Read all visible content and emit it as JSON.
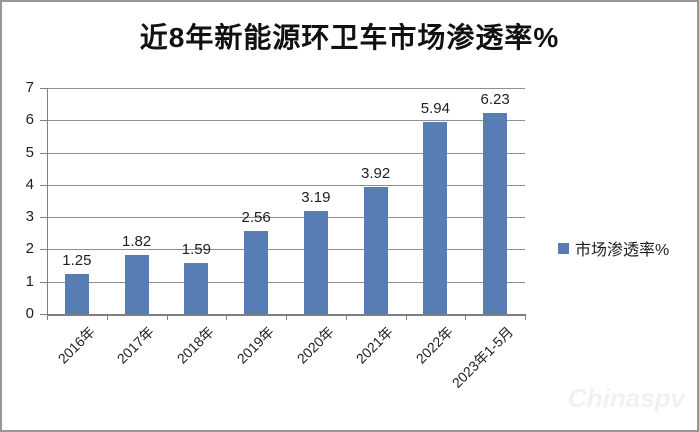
{
  "title": "近8年新能源环卫车市场渗透率%",
  "legend": {
    "label": "市场渗透率%"
  },
  "watermark": "Chinaspv",
  "colors": {
    "bar": "#587DB4",
    "gridline": "#8f8f8f",
    "axis": "#7f7f7f",
    "text": "#1f1f1f",
    "frame_border": "#979797"
  },
  "chart_data": {
    "type": "bar",
    "title": "近8年新能源环卫车市场渗透率%",
    "categories": [
      "2016年",
      "2017年",
      "2018年",
      "2019年",
      "2020年",
      "2021年",
      "2022年",
      "2023年1-5月"
    ],
    "series": [
      {
        "name": "市场渗透率%",
        "values": [
          1.25,
          1.82,
          1.59,
          2.56,
          3.19,
          3.92,
          5.94,
          6.23
        ]
      }
    ],
    "value_labels": [
      "1.25",
      "1.82",
      "1.59",
      "2.56",
      "3.19",
      "3.92",
      "5.94",
      "6.23"
    ],
    "xlabel": "",
    "ylabel": "",
    "ylim": [
      0,
      7
    ],
    "ytick_step": 1,
    "ytick_labels": [
      "0",
      "1",
      "2",
      "3",
      "4",
      "5",
      "6",
      "7"
    ],
    "grid": true,
    "legend_position": "right",
    "bar_color": "#587DB4"
  }
}
